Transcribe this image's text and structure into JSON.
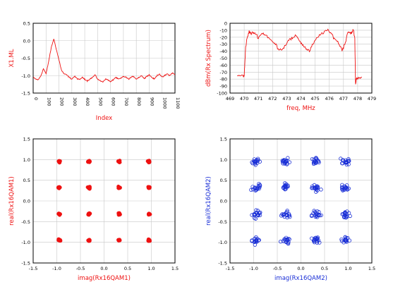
{
  "colors": {
    "red": "#ee1111",
    "blue": "#1a2fd6",
    "grid": "#c8c8c8",
    "axis": "#000000"
  },
  "chart_data": [
    {
      "type": "line",
      "xlabel": "Index",
      "ylabel": "X1.ML",
      "label_color": "red",
      "xlim": [
        0,
        1100
      ],
      "ylim": [
        -1.5,
        0.5
      ],
      "xticks": [
        0,
        100,
        200,
        300,
        400,
        500,
        600,
        700,
        800,
        900,
        1000,
        1100
      ],
      "xticklabels": [
        "0",
        "100",
        "200",
        "300",
        "400",
        "500",
        "600",
        "700",
        "800",
        "900",
        "1000",
        "1100"
      ],
      "yticks": [
        -1.5,
        -1.0,
        -0.5,
        0.0,
        0.5
      ],
      "yticklabels": [
        "-1.5",
        "-1.0",
        "-0.5",
        "0.0",
        "0.5"
      ],
      "grid": true,
      "series": [
        {
          "color": "red",
          "x": [
            0,
            20,
            40,
            60,
            80,
            100,
            120,
            140,
            160,
            180,
            200,
            220,
            240,
            260,
            280,
            300,
            320,
            340,
            360,
            380,
            400,
            420,
            440,
            460,
            480,
            500,
            520,
            540,
            560,
            580,
            600,
            620,
            640,
            660,
            680,
            700,
            720,
            740,
            760,
            780,
            800,
            820,
            840,
            860,
            880,
            900,
            920,
            940,
            960,
            980,
            1000,
            1020,
            1040,
            1060,
            1080,
            1100
          ],
          "y": [
            -1.05,
            -1.1,
            -1.12,
            -1.0,
            -0.8,
            -0.95,
            -0.6,
            -0.2,
            0.05,
            -0.25,
            -0.55,
            -0.85,
            -0.95,
            -0.98,
            -1.05,
            -1.1,
            -1.02,
            -1.08,
            -1.12,
            -1.05,
            -1.1,
            -1.15,
            -1.1,
            -1.05,
            -0.98,
            -1.1,
            -1.15,
            -1.18,
            -1.1,
            -1.12,
            -1.18,
            -1.12,
            -1.05,
            -1.1,
            -1.08,
            -1.02,
            -1.05,
            -1.1,
            -1.05,
            -1.02,
            -1.1,
            -1.05,
            -1.0,
            -1.08,
            -1.02,
            -0.98,
            -1.05,
            -1.1,
            -1.0,
            -0.95,
            -1.05,
            -1.0,
            -0.95,
            -1.0,
            -0.92,
            -0.98
          ]
        }
      ]
    },
    {
      "type": "line",
      "xlabel": "freq, MHz",
      "ylabel": "dBm(Rx Spectrum)",
      "label_color": "red",
      "xlim": [
        469,
        479
      ],
      "ylim": [
        -100,
        0
      ],
      "xticks": [
        469,
        470,
        471,
        472,
        473,
        474,
        475,
        476,
        477,
        478,
        479
      ],
      "xticklabels": [
        "469",
        "470",
        "471",
        "472",
        "473",
        "474",
        "475",
        "476",
        "477",
        "478",
        "479"
      ],
      "yticks": [
        -100,
        -90,
        -80,
        -70,
        -60,
        -50,
        -40,
        -30,
        -20,
        -10,
        0
      ],
      "yticklabels": [
        "-100",
        "-90",
        "-80",
        "-70",
        "-60",
        "-50",
        "-40",
        "-30",
        "-20",
        "-10",
        "0"
      ],
      "grid": true,
      "series": [
        {
          "color": "red",
          "x": [
            469.5,
            469.9,
            470.0,
            470.05,
            470.1,
            470.2,
            470.35,
            470.5,
            470.7,
            471.0,
            471.3,
            471.6,
            471.9,
            472.2,
            472.5,
            472.8,
            473.1,
            473.4,
            473.7,
            474.0,
            474.3,
            474.6,
            474.9,
            475.2,
            475.5,
            475.8,
            476.1,
            476.4,
            476.7,
            476.9,
            477.1,
            477.3,
            477.5,
            477.7,
            477.8,
            477.85,
            477.9,
            478.0,
            478.3
          ],
          "y": [
            -75,
            -75,
            -76,
            -55,
            -35,
            -22,
            -12,
            -15,
            -13,
            -20,
            -14,
            -18,
            -25,
            -30,
            -38,
            -35,
            -24,
            -22,
            -18,
            -28,
            -35,
            -40,
            -28,
            -20,
            -14,
            -10,
            -14,
            -22,
            -30,
            -38,
            -30,
            -12,
            -14,
            -10,
            -22,
            -88,
            -80,
            -78,
            -77
          ]
        }
      ]
    },
    {
      "type": "scatter",
      "xlabel": "imag(Rx16QAM1)",
      "ylabel": "real(Rx16QAM1)",
      "label_color": "red",
      "marker": "dot",
      "xlim": [
        -1.5,
        1.5
      ],
      "ylim": [
        -1.5,
        1.5
      ],
      "xticks": [
        -1.5,
        -1.0,
        -0.5,
        0.0,
        0.5,
        1.0,
        1.5
      ],
      "xticklabels": [
        "-1.5",
        "-1.0",
        "-0.5",
        "0.0",
        "0.5",
        "1.0",
        "1.5"
      ],
      "yticks": [
        -1.5,
        -1.0,
        -0.5,
        0.0,
        0.5,
        1.0,
        1.5
      ],
      "yticklabels": [
        "-1.5",
        "-1.0",
        "-0.5",
        "0.0",
        "0.5",
        "1.0",
        "1.5"
      ],
      "grid": true,
      "series": [
        {
          "color": "red",
          "spread": 0.035,
          "points_per_cluster": 14,
          "clusters": [
            [
              -0.95,
              0.95
            ],
            [
              -0.32,
              0.95
            ],
            [
              0.32,
              0.95
            ],
            [
              0.95,
              0.95
            ],
            [
              -0.95,
              0.32
            ],
            [
              -0.32,
              0.32
            ],
            [
              0.32,
              0.32
            ],
            [
              0.95,
              0.32
            ],
            [
              -0.95,
              -0.32
            ],
            [
              -0.32,
              -0.32
            ],
            [
              0.32,
              -0.32
            ],
            [
              0.95,
              -0.32
            ],
            [
              -0.95,
              -0.95
            ],
            [
              -0.32,
              -0.95
            ],
            [
              0.32,
              -0.95
            ],
            [
              0.95,
              -0.95
            ]
          ]
        }
      ]
    },
    {
      "type": "scatter",
      "xlabel": "imag(Rx16QAM2)",
      "ylabel": "real(Rx16QAM2)",
      "label_color": "blue",
      "marker": "circle",
      "xlim": [
        -1.5,
        1.5
      ],
      "ylim": [
        -1.5,
        1.5
      ],
      "xticks": [
        -1.5,
        -1.0,
        -0.5,
        0.0,
        0.5,
        1.0,
        1.5
      ],
      "xticklabels": [
        "-1.5",
        "-1.0",
        "-0.5",
        "0.0",
        "0.5",
        "1.0",
        "1.5"
      ],
      "yticks": [
        -1.5,
        -1.0,
        -0.5,
        0.0,
        0.5,
        1.0,
        1.5
      ],
      "yticklabels": [
        "-1.5",
        "-1.0",
        "-0.5",
        "0.0",
        "0.5",
        "1.0",
        "1.5"
      ],
      "grid": true,
      "series": [
        {
          "color": "blue",
          "spread": 0.13,
          "points_per_cluster": 18,
          "clusters": [
            [
              -0.95,
              0.95
            ],
            [
              -0.32,
              0.95
            ],
            [
              0.32,
              0.95
            ],
            [
              0.95,
              0.95
            ],
            [
              -0.95,
              0.32
            ],
            [
              -0.32,
              0.32
            ],
            [
              0.32,
              0.32
            ],
            [
              0.95,
              0.32
            ],
            [
              -0.95,
              -0.32
            ],
            [
              -0.32,
              -0.32
            ],
            [
              0.32,
              -0.32
            ],
            [
              0.95,
              -0.32
            ],
            [
              -0.95,
              -0.95
            ],
            [
              -0.32,
              -0.95
            ],
            [
              0.32,
              -0.95
            ],
            [
              0.95,
              -0.95
            ]
          ]
        }
      ]
    }
  ]
}
